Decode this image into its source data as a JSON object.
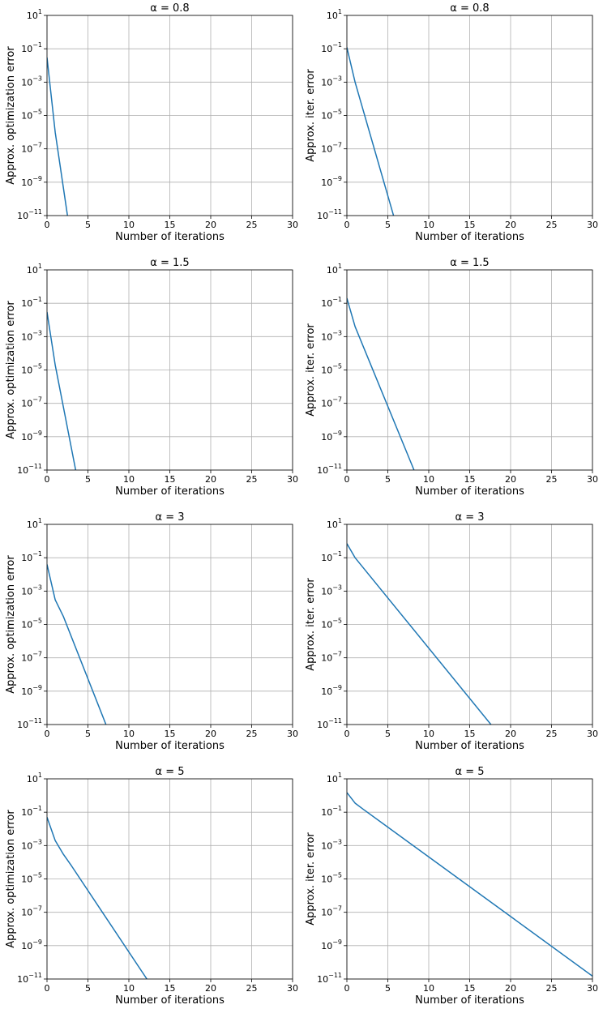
{
  "colors": {
    "series": "#1f77b4",
    "grid": "#b0b0b0",
    "axes": "#000000"
  },
  "chart_data": [
    {
      "type": "line",
      "title": "α = 0.8",
      "xlabel": "Number of iterations",
      "ylabel": "Approx. optimization error",
      "xlim": [
        0,
        30
      ],
      "ylim_exp": [
        -11,
        1
      ],
      "yscale": "log",
      "grid": true,
      "xticks": [
        "0",
        "5",
        "10",
        "15",
        "20",
        "25",
        "30"
      ],
      "yticks": [
        "10^1",
        "10^-1",
        "10^-3",
        "10^-5",
        "10^-7",
        "10^-9",
        "10^-11"
      ],
      "series": [
        {
          "x": [
            0,
            1,
            2.5
          ],
          "y": [
            0.03,
            1e-06,
            1e-11
          ]
        }
      ]
    },
    {
      "type": "line",
      "title": "α = 0.8",
      "xlabel": "Number of iterations",
      "ylabel": "Approx. iter. error",
      "xlim": [
        0,
        30
      ],
      "ylim_exp": [
        -11,
        1
      ],
      "yscale": "log",
      "grid": true,
      "xticks": [
        "0",
        "5",
        "10",
        "15",
        "20",
        "25",
        "30"
      ],
      "yticks": [
        "10^1",
        "10^-1",
        "10^-3",
        "10^-5",
        "10^-7",
        "10^-9",
        "10^-11"
      ],
      "series": [
        {
          "x": [
            0,
            1,
            5.7
          ],
          "y": [
            0.12,
            0.001,
            1e-11
          ]
        }
      ]
    },
    {
      "type": "line",
      "title": "α = 1.5",
      "xlabel": "Number of iterations",
      "ylabel": "Approx. optimization error",
      "xlim": [
        0,
        30
      ],
      "ylim_exp": [
        -11,
        1
      ],
      "yscale": "log",
      "grid": true,
      "xticks": [
        "0",
        "5",
        "10",
        "15",
        "20",
        "25",
        "30"
      ],
      "yticks": [
        "10^1",
        "10^-1",
        "10^-3",
        "10^-5",
        "10^-7",
        "10^-9",
        "10^-11"
      ],
      "series": [
        {
          "x": [
            0,
            1,
            3.5
          ],
          "y": [
            0.03,
            2e-05,
            1e-11
          ]
        }
      ]
    },
    {
      "type": "line",
      "title": "α = 1.5",
      "xlabel": "Number of iterations",
      "ylabel": "Approx. iter. error",
      "xlim": [
        0,
        30
      ],
      "ylim_exp": [
        -11,
        1
      ],
      "yscale": "log",
      "grid": true,
      "xticks": [
        "0",
        "5",
        "10",
        "15",
        "20",
        "25",
        "30"
      ],
      "yticks": [
        "10^1",
        "10^-1",
        "10^-3",
        "10^-5",
        "10^-7",
        "10^-9",
        "10^-11"
      ],
      "series": [
        {
          "x": [
            0,
            1,
            8.2
          ],
          "y": [
            0.2,
            0.004,
            1e-11
          ]
        }
      ]
    },
    {
      "type": "line",
      "title": "α = 3",
      "xlabel": "Number of iterations",
      "ylabel": "Approx. optimization error",
      "xlim": [
        0,
        30
      ],
      "ylim_exp": [
        -11,
        1
      ],
      "yscale": "log",
      "grid": true,
      "xticks": [
        "0",
        "5",
        "10",
        "15",
        "20",
        "25",
        "30"
      ],
      "yticks": [
        "10^1",
        "10^-1",
        "10^-3",
        "10^-5",
        "10^-7",
        "10^-9",
        "10^-11"
      ],
      "series": [
        {
          "x": [
            0,
            1,
            2,
            7.2
          ],
          "y": [
            0.04,
            0.0003,
            3e-05,
            1e-11
          ]
        }
      ]
    },
    {
      "type": "line",
      "title": "α = 3",
      "xlabel": "Number of iterations",
      "ylabel": "Approx. iter. error",
      "xlim": [
        0,
        30
      ],
      "ylim_exp": [
        -11,
        1
      ],
      "yscale": "log",
      "grid": true,
      "xticks": [
        "0",
        "5",
        "10",
        "15",
        "20",
        "25",
        "30"
      ],
      "yticks": [
        "10^1",
        "10^-1",
        "10^-3",
        "10^-5",
        "10^-7",
        "10^-9",
        "10^-11"
      ],
      "series": [
        {
          "x": [
            0,
            1,
            17.6
          ],
          "y": [
            0.7,
            0.1,
            1e-11
          ]
        }
      ]
    },
    {
      "type": "line",
      "title": "α = 5",
      "xlabel": "Number of iterations",
      "ylabel": "Approx. optimization error",
      "xlim": [
        0,
        30
      ],
      "ylim_exp": [
        -11,
        1
      ],
      "yscale": "log",
      "grid": true,
      "xticks": [
        "0",
        "5",
        "10",
        "15",
        "20",
        "25",
        "30"
      ],
      "yticks": [
        "10^1",
        "10^-1",
        "10^-3",
        "10^-5",
        "10^-7",
        "10^-9",
        "10^-11"
      ],
      "series": [
        {
          "x": [
            0,
            1,
            2,
            3,
            12.2
          ],
          "y": [
            0.05,
            0.002,
            0.0003,
            6e-05,
            1e-11
          ]
        }
      ]
    },
    {
      "type": "line",
      "title": "α = 5",
      "xlabel": "Number of iterations",
      "ylabel": "Approx. iter. error",
      "xlim": [
        0,
        30
      ],
      "ylim_exp": [
        -11,
        1
      ],
      "yscale": "log",
      "grid": true,
      "xticks": [
        "0",
        "5",
        "10",
        "15",
        "20",
        "25",
        "30"
      ],
      "yticks": [
        "10^1",
        "10^-1",
        "10^-3",
        "10^-5",
        "10^-7",
        "10^-9",
        "10^-11"
      ],
      "series": [
        {
          "x": [
            0,
            1,
            2,
            30
          ],
          "y": [
            1.5,
            0.35,
            0.15,
            1.5e-11
          ]
        }
      ]
    }
  ]
}
